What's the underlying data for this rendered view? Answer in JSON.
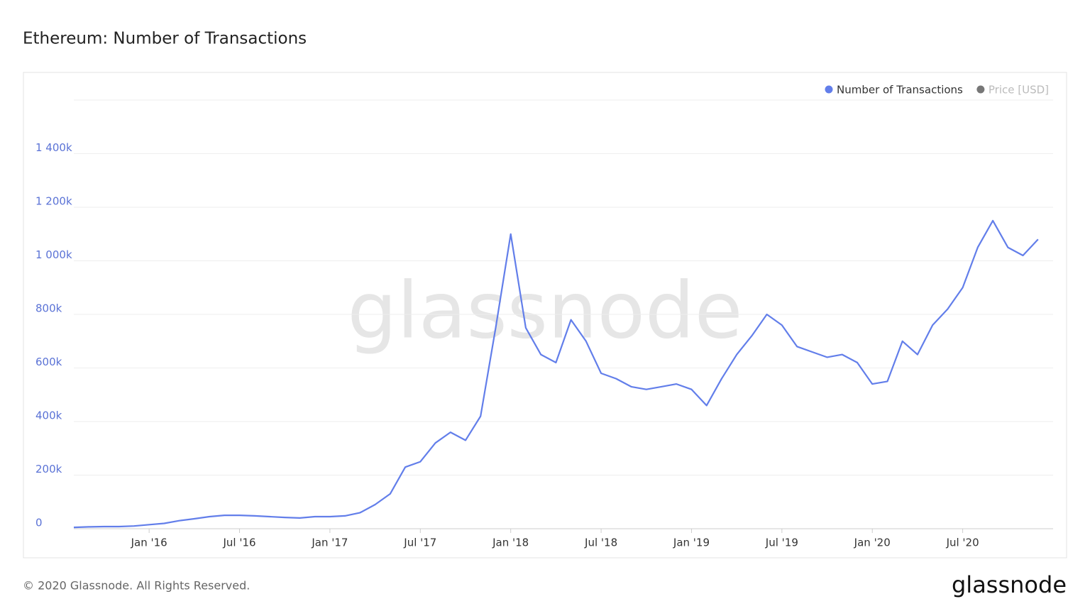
{
  "chart_data": {
    "type": "line",
    "title": "Ethereum: Number of Transactions",
    "watermark": "glassnode",
    "copyright": "© 2020 Glassnode. All Rights Reserved.",
    "logo": "glassnode",
    "x": [
      "2015-08",
      "2015-09",
      "2015-10",
      "2015-11",
      "2015-12",
      "2016-01",
      "2016-02",
      "2016-03",
      "2016-04",
      "2016-05",
      "2016-06",
      "2016-07",
      "2016-08",
      "2016-09",
      "2016-10",
      "2016-11",
      "2016-12",
      "2017-01",
      "2017-02",
      "2017-03",
      "2017-04",
      "2017-05",
      "2017-06",
      "2017-07",
      "2017-08",
      "2017-09",
      "2017-10",
      "2017-11",
      "2017-12",
      "2018-01",
      "2018-02",
      "2018-03",
      "2018-04",
      "2018-05",
      "2018-06",
      "2018-07",
      "2018-08",
      "2018-09",
      "2018-10",
      "2018-11",
      "2018-12",
      "2019-01",
      "2019-02",
      "2019-03",
      "2019-04",
      "2019-05",
      "2019-06",
      "2019-07",
      "2019-08",
      "2019-09",
      "2019-10",
      "2019-11",
      "2019-12",
      "2020-01",
      "2020-02",
      "2020-03",
      "2020-04",
      "2020-05",
      "2020-06",
      "2020-07",
      "2020-08",
      "2020-09",
      "2020-10",
      "2020-11",
      "2020-12"
    ],
    "series": [
      {
        "name": "Number of Transactions",
        "color": "#627eea",
        "visible": true,
        "values": [
          5000,
          7000,
          8000,
          8000,
          10000,
          15000,
          20000,
          30000,
          37000,
          45000,
          50000,
          50000,
          48000,
          45000,
          42000,
          40000,
          45000,
          45000,
          48000,
          60000,
          90000,
          130000,
          230000,
          250000,
          320000,
          360000,
          330000,
          420000,
          750000,
          1100000,
          750000,
          650000,
          620000,
          780000,
          700000,
          580000,
          560000,
          530000,
          520000,
          530000,
          540000,
          520000,
          460000,
          560000,
          650000,
          720000,
          800000,
          760000,
          680000,
          660000,
          640000,
          650000,
          620000,
          540000,
          550000,
          700000,
          650000,
          760000,
          820000,
          900000,
          1050000,
          1150000,
          1050000,
          1020000,
          1080000
        ]
      },
      {
        "name": "Price [USD]",
        "color": "#777777",
        "visible": false,
        "values": [
          null,
          null,
          null,
          null,
          null,
          null,
          null,
          null,
          null,
          null,
          null,
          null,
          null,
          null,
          null,
          null,
          null,
          null,
          null,
          null,
          null,
          null,
          null,
          null,
          null,
          null,
          null,
          null,
          null,
          null,
          null,
          null,
          null,
          null,
          null,
          null,
          null,
          null,
          null,
          null,
          null,
          null,
          null,
          null,
          null,
          null,
          null,
          null,
          null,
          null,
          null,
          null,
          null,
          null,
          null,
          null,
          null,
          null,
          null,
          null,
          null,
          null,
          null,
          null,
          null
        ]
      }
    ],
    "xlim": [
      "2015-08",
      "2021-01"
    ],
    "xticks": [
      {
        "value": "2016-01",
        "label": "Jan '16"
      },
      {
        "value": "2016-07",
        "label": "Jul '16"
      },
      {
        "value": "2017-01",
        "label": "Jan '17"
      },
      {
        "value": "2017-07",
        "label": "Jul '17"
      },
      {
        "value": "2018-01",
        "label": "Jan '18"
      },
      {
        "value": "2018-07",
        "label": "Jul '18"
      },
      {
        "value": "2019-01",
        "label": "Jan '19"
      },
      {
        "value": "2019-07",
        "label": "Jul '19"
      },
      {
        "value": "2020-01",
        "label": "Jan '20"
      },
      {
        "value": "2020-07",
        "label": "Jul '20"
      }
    ],
    "ylim": [
      0,
      1600000
    ],
    "yticks": [
      0,
      {
        "value": 200000,
        "label": "200k"
      },
      {
        "value": 400000,
        "label": "400k"
      },
      {
        "value": 600000,
        "label": "600k"
      },
      {
        "value": 800000,
        "label": "800k"
      },
      {
        "value": 1000000,
        "label": "1 000k"
      },
      {
        "value": 1200000,
        "label": "1 200k"
      },
      {
        "value": 1400000,
        "label": "1 400k"
      }
    ],
    "grid": true,
    "legend": "top-right"
  }
}
